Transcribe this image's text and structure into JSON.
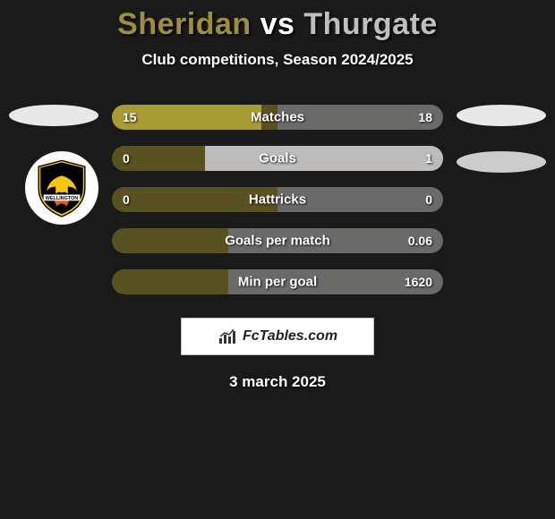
{
  "title": {
    "player1": "Sheridan",
    "vs": "vs",
    "player2": "Thurgate",
    "color1": "#9a8f3e",
    "color_vs": "#ffffff",
    "color2": "#bfbfbf"
  },
  "subtitle": "Club competitions, Season 2024/2025",
  "date": "3 march 2025",
  "colors": {
    "left_fill": "#a79b36",
    "left_bg": "#585120",
    "right_fill": "#bdbcbb",
    "right_bg": "#6a6a69",
    "background": "#1a1a1a"
  },
  "bars": [
    {
      "label": "Matches",
      "left_val": "15",
      "right_val": "18",
      "left_fill_pct": 45,
      "left_bg_pct": 50,
      "right_fill_pct": 0,
      "right_bg_pct": 50
    },
    {
      "label": "Goals",
      "left_val": "0",
      "right_val": "1",
      "left_fill_pct": 0,
      "left_bg_pct": 28,
      "right_fill_pct": 72,
      "right_bg_pct": 72
    },
    {
      "label": "Hattricks",
      "left_val": "0",
      "right_val": "0",
      "left_fill_pct": 0,
      "left_bg_pct": 50,
      "right_fill_pct": 0,
      "right_bg_pct": 50
    },
    {
      "label": "Goals per match",
      "left_val": "",
      "right_val": "0.06",
      "left_fill_pct": 0,
      "left_bg_pct": 35,
      "right_fill_pct": 0,
      "right_bg_pct": 65
    },
    {
      "label": "Min per goal",
      "left_val": "",
      "right_val": "1620",
      "left_fill_pct": 0,
      "left_bg_pct": 35,
      "right_fill_pct": 0,
      "right_bg_pct": 65
    }
  ],
  "brand": "FcTables.com",
  "badge_text": "WELLINGTON"
}
